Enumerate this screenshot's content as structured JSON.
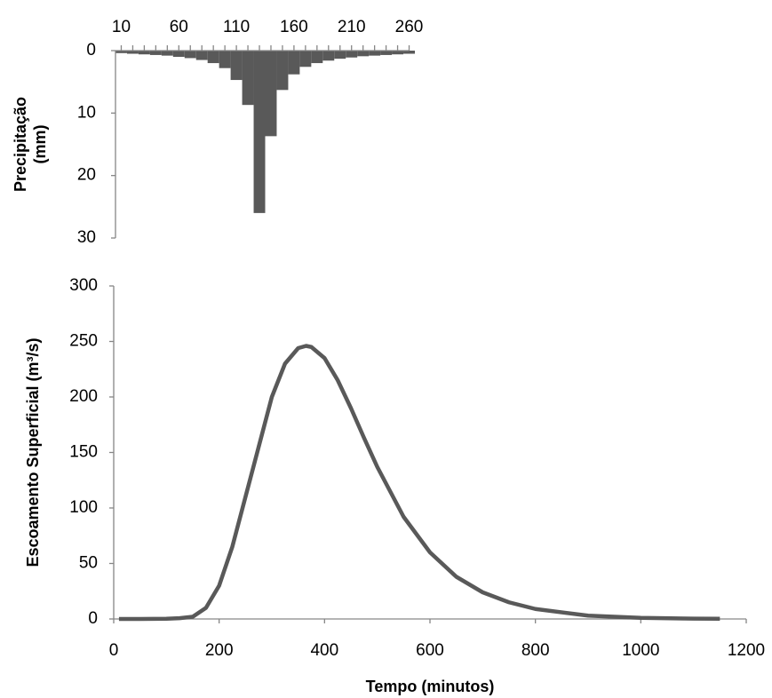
{
  "chart_data": [
    {
      "type": "bar",
      "ylabel": [
        "Precipitação",
        "(mm)"
      ],
      "categories": [
        "10",
        null,
        null,
        null,
        null,
        "60",
        null,
        null,
        null,
        null,
        "110",
        null,
        null,
        null,
        null,
        "160",
        null,
        null,
        null,
        null,
        "210",
        null,
        null,
        null,
        null,
        "260"
      ],
      "values": [
        0.4,
        0.5,
        0.6,
        0.7,
        0.8,
        1.0,
        1.2,
        1.5,
        2.0,
        2.8,
        4.7,
        8.7,
        26.0,
        13.7,
        6.3,
        3.8,
        2.6,
        2.0,
        1.6,
        1.3,
        1.1,
        0.9,
        0.8,
        0.7,
        0.6,
        0.5
      ],
      "color": "#595959",
      "ylim": [
        0,
        30
      ],
      "yticks": [
        0,
        10,
        20,
        30
      ],
      "y_reversed": true,
      "xaxis_position": "top"
    },
    {
      "type": "line",
      "xlabel": "Tempo (minutos)",
      "ylabel": "Escoamento Superficial (m³/s)",
      "x": [
        10,
        50,
        100,
        125,
        150,
        175,
        200,
        225,
        250,
        275,
        300,
        325,
        350,
        365,
        375,
        400,
        425,
        450,
        475,
        500,
        550,
        600,
        650,
        700,
        750,
        800,
        900,
        1000,
        1100,
        1150
      ],
      "values": [
        0,
        0,
        0.2,
        0.7,
        2,
        10,
        30,
        65,
        110,
        155,
        200,
        230,
        244,
        246,
        245,
        235,
        215,
        190,
        163,
        137,
        92,
        60,
        38,
        24,
        15,
        9,
        3,
        1,
        0.3,
        0.2
      ],
      "color": "#595959",
      "xlim": [
        0,
        1200
      ],
      "xticks": [
        0,
        200,
        400,
        600,
        800,
        1000,
        1200
      ],
      "ylim": [
        0,
        300
      ],
      "yticks": [
        0,
        50,
        100,
        150,
        200,
        250,
        300
      ]
    }
  ]
}
